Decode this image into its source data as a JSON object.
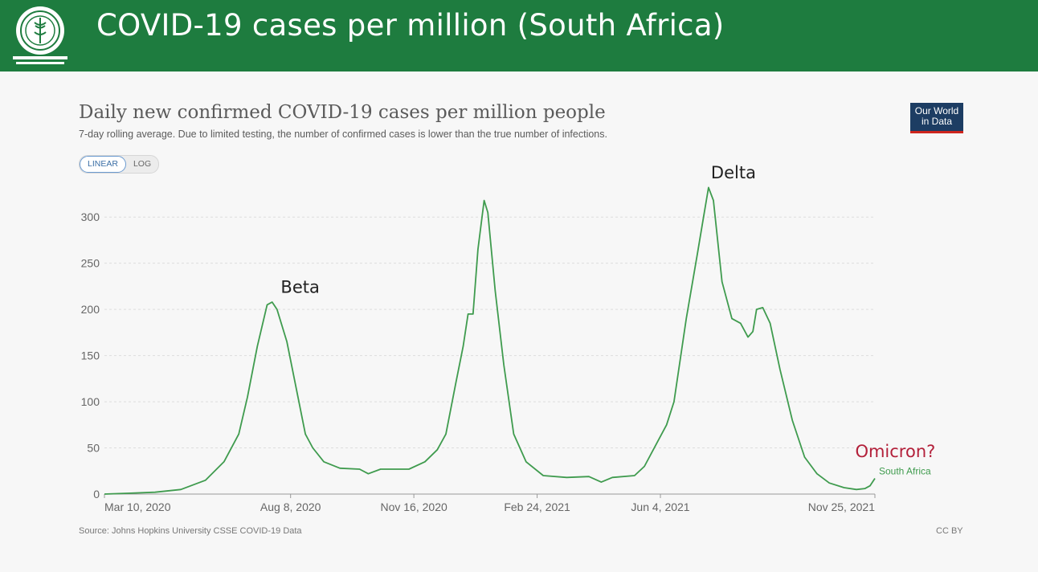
{
  "banner": {
    "title": "COVID-19 cases per million (South Africa)",
    "color": "#1e7c3f"
  },
  "header": {
    "title": "Daily new confirmed COVID-19 cases per million people",
    "subtitle": "7-day rolling average. Due to limited testing, the number of confirmed cases is lower than the true number of infections."
  },
  "scale_toggle": {
    "linear_label": "LINEAR",
    "log_label": "LOG",
    "selected": "LINEAR"
  },
  "logo": {
    "line1": "Our World",
    "line2": "in Data"
  },
  "footer": {
    "source": "Source: Johns Hopkins University CSSE COVID-19 Data",
    "license": "CC BY"
  },
  "chart_data": {
    "type": "line",
    "title": "Daily new confirmed COVID-19 cases per million people",
    "subtitle": "7-day rolling average. Due to limited testing, the number of confirmed cases is lower than the true number of infections.",
    "xlabel": "",
    "ylabel": "",
    "xlim": [
      "2020-03-10",
      "2021-11-25"
    ],
    "ylim": [
      0,
      335
    ],
    "yticks": [
      0,
      50,
      100,
      150,
      200,
      250,
      300
    ],
    "xticks": [
      "2020-03-10",
      "2020-08-08",
      "2020-11-16",
      "2021-02-24",
      "2021-06-04",
      "2021-11-25"
    ],
    "xtick_labels": [
      "Mar 10, 2020",
      "Aug 8, 2020",
      "Nov 16, 2020",
      "Feb 24, 2021",
      "Jun 4, 2021",
      "Nov 25, 2021"
    ],
    "grid": "horizontal",
    "series": [
      {
        "name": "South Africa",
        "color": "#3f9b4e",
        "points": [
          [
            "2020-03-10",
            0
          ],
          [
            "2020-03-31",
            1
          ],
          [
            "2020-04-20",
            2
          ],
          [
            "2020-05-11",
            5
          ],
          [
            "2020-05-31",
            15
          ],
          [
            "2020-06-15",
            35
          ],
          [
            "2020-06-27",
            65
          ],
          [
            "2020-07-04",
            105
          ],
          [
            "2020-07-12",
            160
          ],
          [
            "2020-07-20",
            205
          ],
          [
            "2020-07-24",
            208
          ],
          [
            "2020-07-28",
            200
          ],
          [
            "2020-08-05",
            165
          ],
          [
            "2020-08-14",
            105
          ],
          [
            "2020-08-20",
            65
          ],
          [
            "2020-08-26",
            50
          ],
          [
            "2020-09-04",
            35
          ],
          [
            "2020-09-17",
            28
          ],
          [
            "2020-10-03",
            27
          ],
          [
            "2020-10-10",
            22
          ],
          [
            "2020-10-20",
            27
          ],
          [
            "2020-10-30",
            27
          ],
          [
            "2020-11-12",
            27
          ],
          [
            "2020-11-25",
            35
          ],
          [
            "2020-12-05",
            48
          ],
          [
            "2020-12-12",
            65
          ],
          [
            "2020-12-20",
            120
          ],
          [
            "2020-12-26",
            160
          ],
          [
            "2020-12-30",
            195
          ],
          [
            "2021-01-03",
            195
          ],
          [
            "2021-01-07",
            265
          ],
          [
            "2021-01-12",
            318
          ],
          [
            "2021-01-15",
            305
          ],
          [
            "2021-01-21",
            220
          ],
          [
            "2021-01-28",
            140
          ],
          [
            "2021-02-05",
            65
          ],
          [
            "2021-02-15",
            35
          ],
          [
            "2021-03-01",
            20
          ],
          [
            "2021-03-20",
            18
          ],
          [
            "2021-04-07",
            19
          ],
          [
            "2021-04-17",
            13
          ],
          [
            "2021-04-26",
            18
          ],
          [
            "2021-05-14",
            20
          ],
          [
            "2021-05-22",
            30
          ],
          [
            "2021-06-01",
            55
          ],
          [
            "2021-06-09",
            75
          ],
          [
            "2021-06-15",
            100
          ],
          [
            "2021-06-25",
            190
          ],
          [
            "2021-07-04",
            260
          ],
          [
            "2021-07-09",
            300
          ],
          [
            "2021-07-13",
            332
          ],
          [
            "2021-07-17",
            318
          ],
          [
            "2021-07-24",
            230
          ],
          [
            "2021-08-01",
            190
          ],
          [
            "2021-08-08",
            185
          ],
          [
            "2021-08-14",
            170
          ],
          [
            "2021-08-18",
            176
          ],
          [
            "2021-08-21",
            200
          ],
          [
            "2021-08-26",
            202
          ],
          [
            "2021-09-01",
            185
          ],
          [
            "2021-09-09",
            135
          ],
          [
            "2021-09-19",
            80
          ],
          [
            "2021-09-29",
            40
          ],
          [
            "2021-10-09",
            22
          ],
          [
            "2021-10-19",
            12
          ],
          [
            "2021-10-31",
            7
          ],
          [
            "2021-11-10",
            5
          ],
          [
            "2021-11-17",
            6
          ],
          [
            "2021-11-21",
            9
          ],
          [
            "2021-11-25",
            17
          ]
        ]
      }
    ],
    "annotations": [
      {
        "text": "Beta",
        "date": "2020-07-31",
        "value": 218,
        "color": "#222222"
      },
      {
        "text": "Delta",
        "date": "2021-07-15",
        "value": 342,
        "color": "#222222"
      },
      {
        "text": "Omicron?",
        "date": "2021-11-09",
        "value": 40,
        "color": "#b3203a"
      }
    ],
    "end_label": "South Africa"
  }
}
